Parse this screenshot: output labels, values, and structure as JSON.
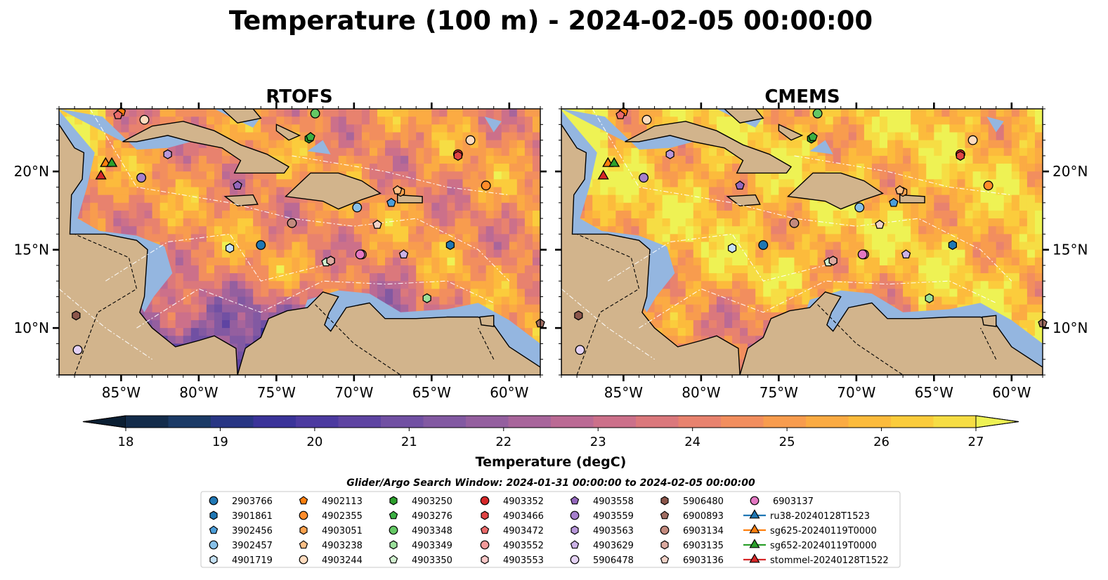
{
  "figure": {
    "title": "Temperature (100 m) - 2024-02-05 00:00:00",
    "panels": [
      {
        "title": "RTOFS",
        "model": "rtofs"
      },
      {
        "title": "CMEMS",
        "model": "cmems"
      }
    ],
    "x_ticks": [
      "85°W",
      "80°W",
      "75°W",
      "70°W",
      "65°W",
      "60°W"
    ],
    "x_tick_lons": [
      -85,
      -80,
      -75,
      -70,
      -65,
      -60
    ],
    "y_ticks": [
      "20°N",
      "15°N",
      "10°N"
    ],
    "y_tick_lats": [
      20,
      15,
      10
    ],
    "lon_range": [
      -89,
      -58
    ],
    "lat_range": [
      7,
      24
    ],
    "land_color": "#d2b48c",
    "shelf_color": "#94b6e0",
    "colorbar": {
      "label": "Temperature (degC)",
      "ticks": [
        "18",
        "19",
        "20",
        "21",
        "22",
        "23",
        "24",
        "25",
        "26",
        "27"
      ],
      "range": [
        18,
        27
      ],
      "colors": [
        "#0b1f33",
        "#132c4b",
        "#1b3a66",
        "#283684",
        "#3a3399",
        "#4c3aa0",
        "#5e44a2",
        "#7150a3",
        "#8259a2",
        "#945f9f",
        "#a8659b",
        "#bb6a94",
        "#cc708a",
        "#db787c",
        "#e8826e",
        "#f28e5e",
        "#f89c4e",
        "#fbab43",
        "#fcbb3c",
        "#fbcc3c",
        "#f6dd44",
        "#eef254"
      ]
    },
    "search_window": "Glider/Argo Search Window: 2024-01-31 00:00:00 to 2024-02-05 00:00:00"
  },
  "legend": [
    {
      "label": "2903766",
      "marker": "circle",
      "color": "#1f77b4"
    },
    {
      "label": "3901861",
      "marker": "hexagon",
      "color": "#1f77b4"
    },
    {
      "label": "3902456",
      "marker": "pentagon",
      "color": "#4c9ed9"
    },
    {
      "label": "3902457",
      "marker": "circle",
      "color": "#87c0e8"
    },
    {
      "label": "4901719",
      "marker": "hexagon",
      "color": "#c6e2f6"
    },
    {
      "label": "4902113",
      "marker": "pentagon",
      "color": "#ff7f0e"
    },
    {
      "label": "4902355",
      "marker": "circle",
      "color": "#ff8c2a"
    },
    {
      "label": "4903051",
      "marker": "hexagon",
      "color": "#ffa34f"
    },
    {
      "label": "4903238",
      "marker": "pentagon",
      "color": "#ffbf86"
    },
    {
      "label": "4903244",
      "marker": "circle",
      "color": "#ffdcbf"
    },
    {
      "label": "4903250",
      "marker": "hexagon",
      "color": "#2ca02c"
    },
    {
      "label": "4903276",
      "marker": "pentagon",
      "color": "#3cb043"
    },
    {
      "label": "4903348",
      "marker": "circle",
      "color": "#64c864"
    },
    {
      "label": "4903349",
      "marker": "hexagon",
      "color": "#9be09b"
    },
    {
      "label": "4903350",
      "marker": "pentagon",
      "color": "#d2f2d0"
    },
    {
      "label": "4903352",
      "marker": "circle",
      "color": "#d62728"
    },
    {
      "label": "4903466",
      "marker": "hexagon",
      "color": "#e04444"
    },
    {
      "label": "4903472",
      "marker": "pentagon",
      "color": "#ea6a6a"
    },
    {
      "label": "4903552",
      "marker": "circle",
      "color": "#f49a9a"
    },
    {
      "label": "4903553",
      "marker": "hexagon",
      "color": "#fbc8c8"
    },
    {
      "label": "4903558",
      "marker": "pentagon",
      "color": "#9467bd"
    },
    {
      "label": "4903559",
      "marker": "circle",
      "color": "#a67fcc"
    },
    {
      "label": "4903563",
      "marker": "hexagon",
      "color": "#b897da"
    },
    {
      "label": "4903629",
      "marker": "pentagon",
      "color": "#ccb2e6"
    },
    {
      "label": "5906478",
      "marker": "circle",
      "color": "#e4d2f4"
    },
    {
      "label": "5906480",
      "marker": "hexagon",
      "color": "#8c564b"
    },
    {
      "label": "6900893",
      "marker": "pentagon",
      "color": "#a06d62"
    },
    {
      "label": "6903134",
      "marker": "circle",
      "color": "#c38a7e"
    },
    {
      "label": "6903135",
      "marker": "hexagon",
      "color": "#dcaaa0"
    },
    {
      "label": "6903136",
      "marker": "pentagon",
      "color": "#f2d2c8"
    },
    {
      "label": "6903137",
      "marker": "circle",
      "color": "#e377c2"
    },
    {
      "label": "ru38-20240128T1523",
      "marker": "triangle-line",
      "color": "#1f77b4"
    },
    {
      "label": "sg625-20240119T0000",
      "marker": "triangle-line",
      "color": "#ff7f0e"
    },
    {
      "label": "sg652-20240119T0000",
      "marker": "triangle-line",
      "color": "#2ca02c"
    },
    {
      "label": "stommel-20240128T1522",
      "marker": "triangle-line",
      "color": "#d62728"
    }
  ],
  "observations": [
    {
      "id": "2903766",
      "lon": -76.0,
      "lat": 15.3
    },
    {
      "id": "3901861",
      "lon": -63.8,
      "lat": 15.3
    },
    {
      "id": "3902456",
      "lon": -67.6,
      "lat": 18.0
    },
    {
      "id": "3902457",
      "lon": -69.8,
      "lat": 17.7
    },
    {
      "id": "4901719",
      "lon": -78.0,
      "lat": 15.1
    },
    {
      "id": "4902113",
      "lon": -85.0,
      "lat": 23.8
    },
    {
      "id": "4902355",
      "lon": -61.5,
      "lat": 19.1
    },
    {
      "id": "4903051",
      "lon": -67.0,
      "lat": 18.7
    },
    {
      "id": "4903238",
      "lon": -67.2,
      "lat": 18.8
    },
    {
      "id": "4903244",
      "lon": -62.5,
      "lat": 22.0
    },
    {
      "id": "4903250",
      "lon": -72.9,
      "lat": 22.1
    },
    {
      "id": "4903276",
      "lon": -72.8,
      "lat": 22.2
    },
    {
      "id": "4903348",
      "lon": -72.5,
      "lat": 23.7
    },
    {
      "id": "4903349",
      "lon": -65.3,
      "lat": 11.9
    },
    {
      "id": "4903350",
      "lon": -71.8,
      "lat": 14.2
    },
    {
      "id": "4903352",
      "lon": -63.3,
      "lat": 21.1
    },
    {
      "id": "4903466",
      "lon": -63.3,
      "lat": 21.0
    },
    {
      "id": "4903472",
      "lon": -85.2,
      "lat": 23.6
    },
    {
      "id": "4903552",
      "lon": -69.5,
      "lat": 14.7
    },
    {
      "id": "4903553",
      "lon": -71.5,
      "lat": 14.3
    },
    {
      "id": "4903558",
      "lon": -77.5,
      "lat": 19.1
    },
    {
      "id": "4903559",
      "lon": -83.7,
      "lat": 19.6
    },
    {
      "id": "4903563",
      "lon": -82.0,
      "lat": 21.1
    },
    {
      "id": "4903629",
      "lon": -66.8,
      "lat": 14.7
    },
    {
      "id": "5906478",
      "lon": -87.8,
      "lat": 8.6
    },
    {
      "id": "5906480",
      "lon": -87.9,
      "lat": 10.8
    },
    {
      "id": "6900893",
      "lon": -58.0,
      "lat": 10.3
    },
    {
      "id": "6903134",
      "lon": -74.0,
      "lat": 16.7
    },
    {
      "id": "6903135",
      "lon": -71.5,
      "lat": 14.3
    },
    {
      "id": "6903136",
      "lon": -68.5,
      "lat": 16.6
    },
    {
      "id": "6903137",
      "lon": -69.6,
      "lat": 14.7
    },
    {
      "id": "4903244",
      "lon": -83.5,
      "lat": 23.3
    },
    {
      "id": "ru38-20240128T1523",
      "lon": -86.0,
      "lat": 20.5,
      "glider": true
    },
    {
      "id": "sg625-20240119T0000",
      "lon": -86.0,
      "lat": 20.5,
      "glider": true
    },
    {
      "id": "sg652-20240119T0000",
      "lon": -85.6,
      "lat": 20.5,
      "glider": true
    },
    {
      "id": "stommel-20240128T1522",
      "lon": -86.3,
      "lat": 19.7,
      "glider": true
    }
  ]
}
